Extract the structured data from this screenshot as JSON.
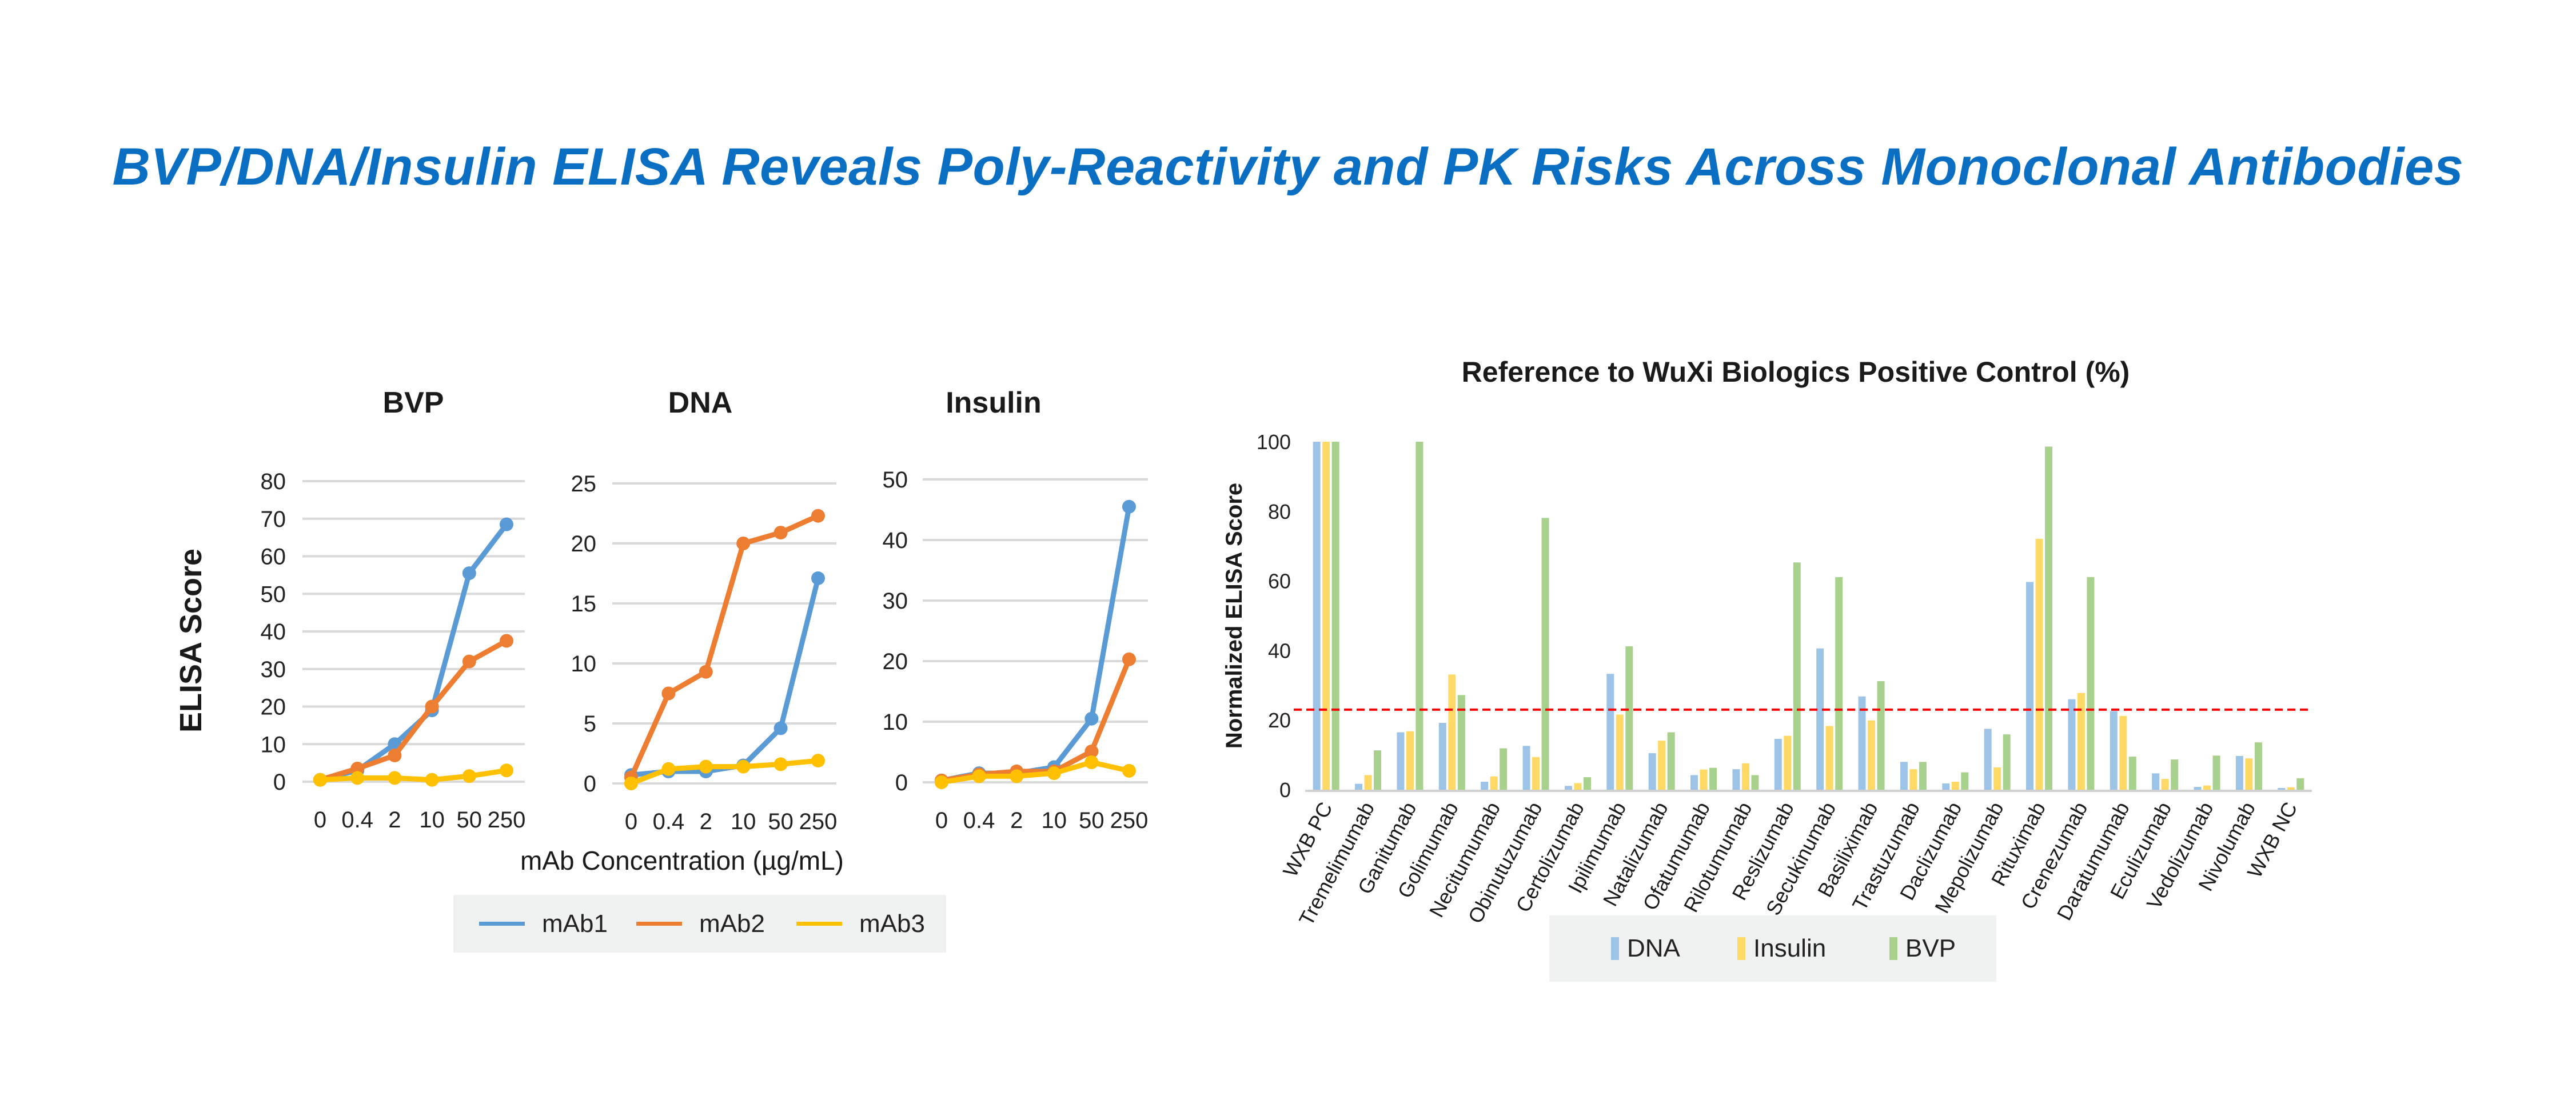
{
  "title": "BVP/DNA/Insulin ELISA Reveals Poly-Reactivity and PK Risks Across Monoclonal Antibodies",
  "chart_data": [
    {
      "type": "line",
      "title": "BVP",
      "ylabel": "ELISA Score",
      "xlabel": "mAb Concentration (µg/mL)",
      "categories": [
        "0",
        "0.4",
        "2",
        "10",
        "50",
        "250"
      ],
      "ylim": [
        0,
        80
      ],
      "yticks": [
        0,
        10,
        20,
        30,
        40,
        50,
        60,
        70,
        80
      ],
      "grid": true,
      "series": [
        {
          "name": "mAb1",
          "color": "#5b9bd5",
          "values": [
            0.5,
            3,
            10,
            19,
            55.5,
            68.5
          ]
        },
        {
          "name": "mAb2",
          "color": "#ed7d31",
          "values": [
            0.5,
            3.5,
            7,
            20,
            32,
            37.5
          ]
        },
        {
          "name": "mAb3",
          "color": "#ffc000",
          "values": [
            0.5,
            1,
            1,
            0.5,
            1.5,
            3
          ]
        }
      ]
    },
    {
      "type": "line",
      "title": "DNA",
      "categories": [
        "0",
        "0.4",
        "2",
        "10",
        "50",
        "250"
      ],
      "ylim": [
        0,
        25
      ],
      "yticks": [
        0,
        5,
        10,
        15,
        20,
        25
      ],
      "grid": true,
      "series": [
        {
          "name": "mAb1",
          "color": "#5b9bd5",
          "values": [
            0.7,
            1,
            1,
            1.5,
            4.6,
            17.1
          ]
        },
        {
          "name": "mAb2",
          "color": "#ed7d31",
          "values": [
            0.5,
            7.5,
            9.3,
            20,
            20.9,
            22.3
          ]
        },
        {
          "name": "mAb3",
          "color": "#ffc000",
          "values": [
            0,
            1.2,
            1.4,
            1.4,
            1.6,
            1.9
          ]
        }
      ]
    },
    {
      "type": "line",
      "title": "Insulin",
      "categories": [
        "0",
        "0.4",
        "2",
        "10",
        "50",
        "250"
      ],
      "ylim": [
        0,
        50
      ],
      "yticks": [
        0,
        10,
        20,
        30,
        40,
        50
      ],
      "grid": true,
      "series": [
        {
          "name": "mAb1",
          "color": "#5b9bd5",
          "values": [
            0.3,
            1.5,
            1.5,
            2.5,
            10.5,
            45.5
          ]
        },
        {
          "name": "mAb2",
          "color": "#ed7d31",
          "values": [
            0.3,
            1.3,
            1.8,
            1.8,
            5.1,
            20.3
          ]
        },
        {
          "name": "mAb3",
          "color": "#ffc000",
          "values": [
            0,
            1,
            1,
            1.5,
            3.3,
            1.9
          ]
        }
      ],
      "legend": "bottom"
    },
    {
      "type": "bar",
      "title": "Reference to WuXi Biologics Positive Control (%)",
      "ylabel": "Normalized ELISA Score",
      "ylim": [
        0,
        100
      ],
      "yticks": [
        0,
        20,
        40,
        60,
        80,
        100
      ],
      "grid": false,
      "legend": "bottom",
      "threshold": {
        "value": 23,
        "color": "#ff0000",
        "style": "dashed"
      },
      "categories": [
        "WXB PC",
        "Tremelimumab",
        "Ganitumab",
        "Golimumab",
        "Necitumumab",
        "Obinutuzumab",
        "Certolizumab",
        "Ipilimumab",
        "Natalizumab",
        "Ofatumumab",
        "Rilotumumab",
        "Reslizumab",
        "Secukinumab",
        "Basiliximab",
        "Trastuzumab",
        "Daclizumab",
        "Mepolizumab",
        "Rituximab",
        "Crenezumab",
        "Daratumumab",
        "Eculizumab",
        "Vedolizumab",
        "Nivolumab",
        "WXB NC"
      ],
      "series": [
        {
          "name": "DNA",
          "color": "#9dc3e6",
          "values": [
            100,
            1.7,
            16.5,
            19.2,
            2.3,
            12.6,
            1.1,
            33.3,
            10.5,
            4.2,
            5.9,
            14.6,
            40.6,
            26.8,
            8.0,
            1.8,
            17.5,
            59.7,
            26.0,
            22.6,
            4.7,
            0.8,
            9.7,
            0.5
          ]
        },
        {
          "name": "Insulin",
          "color": "#ffd966",
          "values": [
            100,
            4.2,
            16.8,
            33.1,
            3.8,
            9.4,
            1.9,
            21.6,
            14.1,
            5.8,
            7.6,
            15.5,
            18.3,
            19.9,
            5.9,
            2.3,
            6.4,
            72.1,
            27.8,
            21.2,
            3.1,
            1.2,
            9.0,
            0.7
          ]
        },
        {
          "name": "BVP",
          "color": "#a9d18e",
          "values": [
            100,
            11.3,
            100,
            27.2,
            11.9,
            78.1,
            3.6,
            41.2,
            16.5,
            6.3,
            4.2,
            65.3,
            61.1,
            31.2,
            8.0,
            5.0,
            15.9,
            98.6,
            61.1,
            9.5,
            8.7,
            9.8,
            13.6,
            3.3
          ]
        }
      ]
    }
  ]
}
